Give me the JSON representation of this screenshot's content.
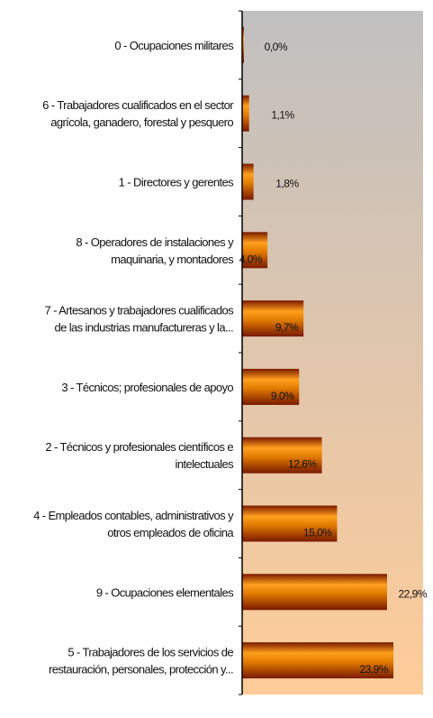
{
  "chart_data": {
    "type": "bar",
    "orientation": "horizontal",
    "categories": [
      [
        "0 - Ocupaciones militares"
      ],
      [
        "6 - Trabajadores cualificados en el sector",
        "agrícola, ganadero, forestal y pesquero"
      ],
      [
        "1 - Directores y gerentes"
      ],
      [
        "8 - Operadores de instalaciones y",
        "maquinaria, y montadores"
      ],
      [
        "7 - Artesanos y trabajadores cualificados",
        "de las industrias manufactureras y la..."
      ],
      [
        "3 - Técnicos; profesionales de apoyo"
      ],
      [
        "2 - Técnicos y profesionales científicos e",
        "intelectuales"
      ],
      [
        "4 - Empleados contables, administrativos y",
        "otros empleados de oficina"
      ],
      [
        "9 - Ocupaciones elementales"
      ],
      [
        "5 - Trabajadores de los servicios de",
        "restauración, personales, protección y..."
      ]
    ],
    "values": [
      0.0,
      1.1,
      1.8,
      4.0,
      9.7,
      9.0,
      12.6,
      15.0,
      22.9,
      23.9
    ],
    "value_labels": [
      "0,0%",
      "1,1%",
      "1,8%",
      "4,0%",
      "9,7%",
      "9,0%",
      "12,6%",
      "15,0%",
      "22,9%",
      "23,9%"
    ],
    "xlim": [
      0,
      30
    ],
    "title": "",
    "xlabel": "",
    "ylabel": "",
    "legend": "none",
    "grid": false,
    "colors": {
      "plot_bg_top": "#c0c0c0",
      "plot_bg_bottom": "#ffcc99",
      "bar_light": "#ffa01e",
      "bar_mid": "#e07a00",
      "bar_dark": "#7a1a00",
      "axis": "#000000"
    }
  }
}
